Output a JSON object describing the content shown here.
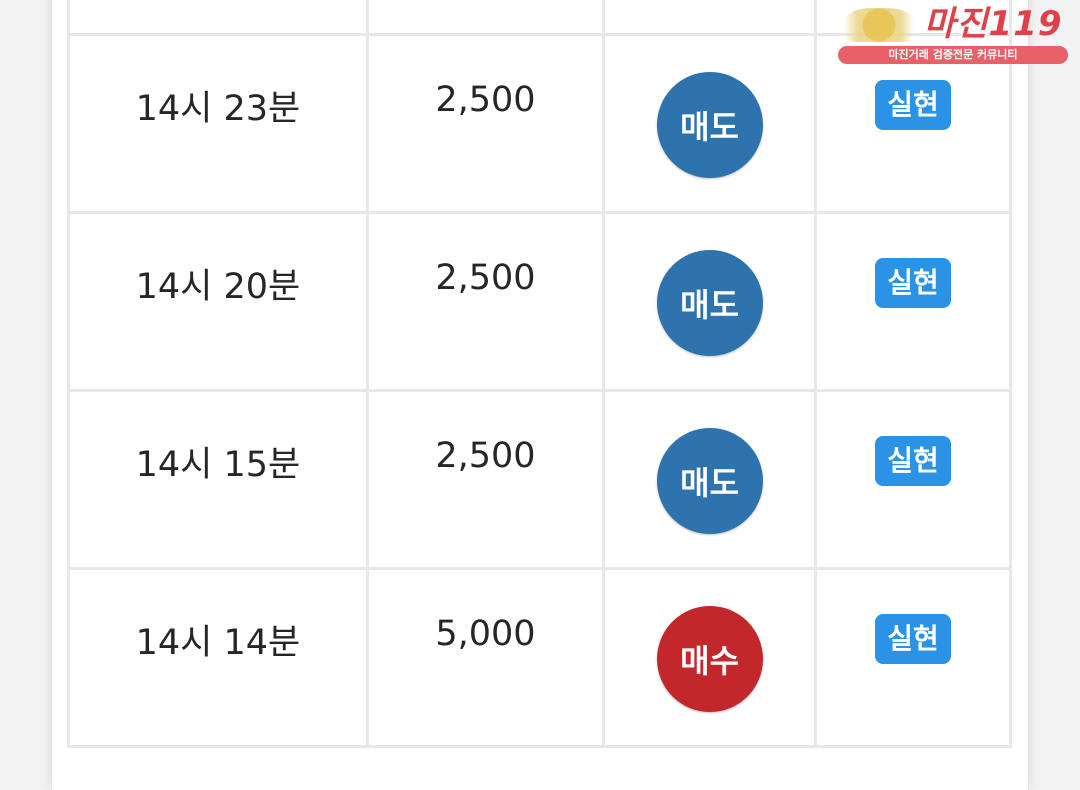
{
  "rows": [
    {
      "time": "",
      "amount": "",
      "side": "",
      "side_type": "sell",
      "status": ""
    },
    {
      "time": "14시 23분",
      "amount": "2,500",
      "side": "매도",
      "side_type": "sell",
      "status": "실현"
    },
    {
      "time": "14시 20분",
      "amount": "2,500",
      "side": "매도",
      "side_type": "sell",
      "status": "실현"
    },
    {
      "time": "14시 15분",
      "amount": "2,500",
      "side": "매도",
      "side_type": "sell",
      "status": "실현"
    },
    {
      "time": "14시 14분",
      "amount": "5,000",
      "side": "매수",
      "side_type": "buy",
      "status": "실현"
    }
  ],
  "logo": {
    "title": "마진119",
    "subtitle": "마진거래 검증전문 커뮤니티"
  },
  "colors": {
    "sell": "#2e72ae",
    "buy": "#c2272b",
    "status_badge": "#2a93e6",
    "logo": "#e0404a"
  }
}
